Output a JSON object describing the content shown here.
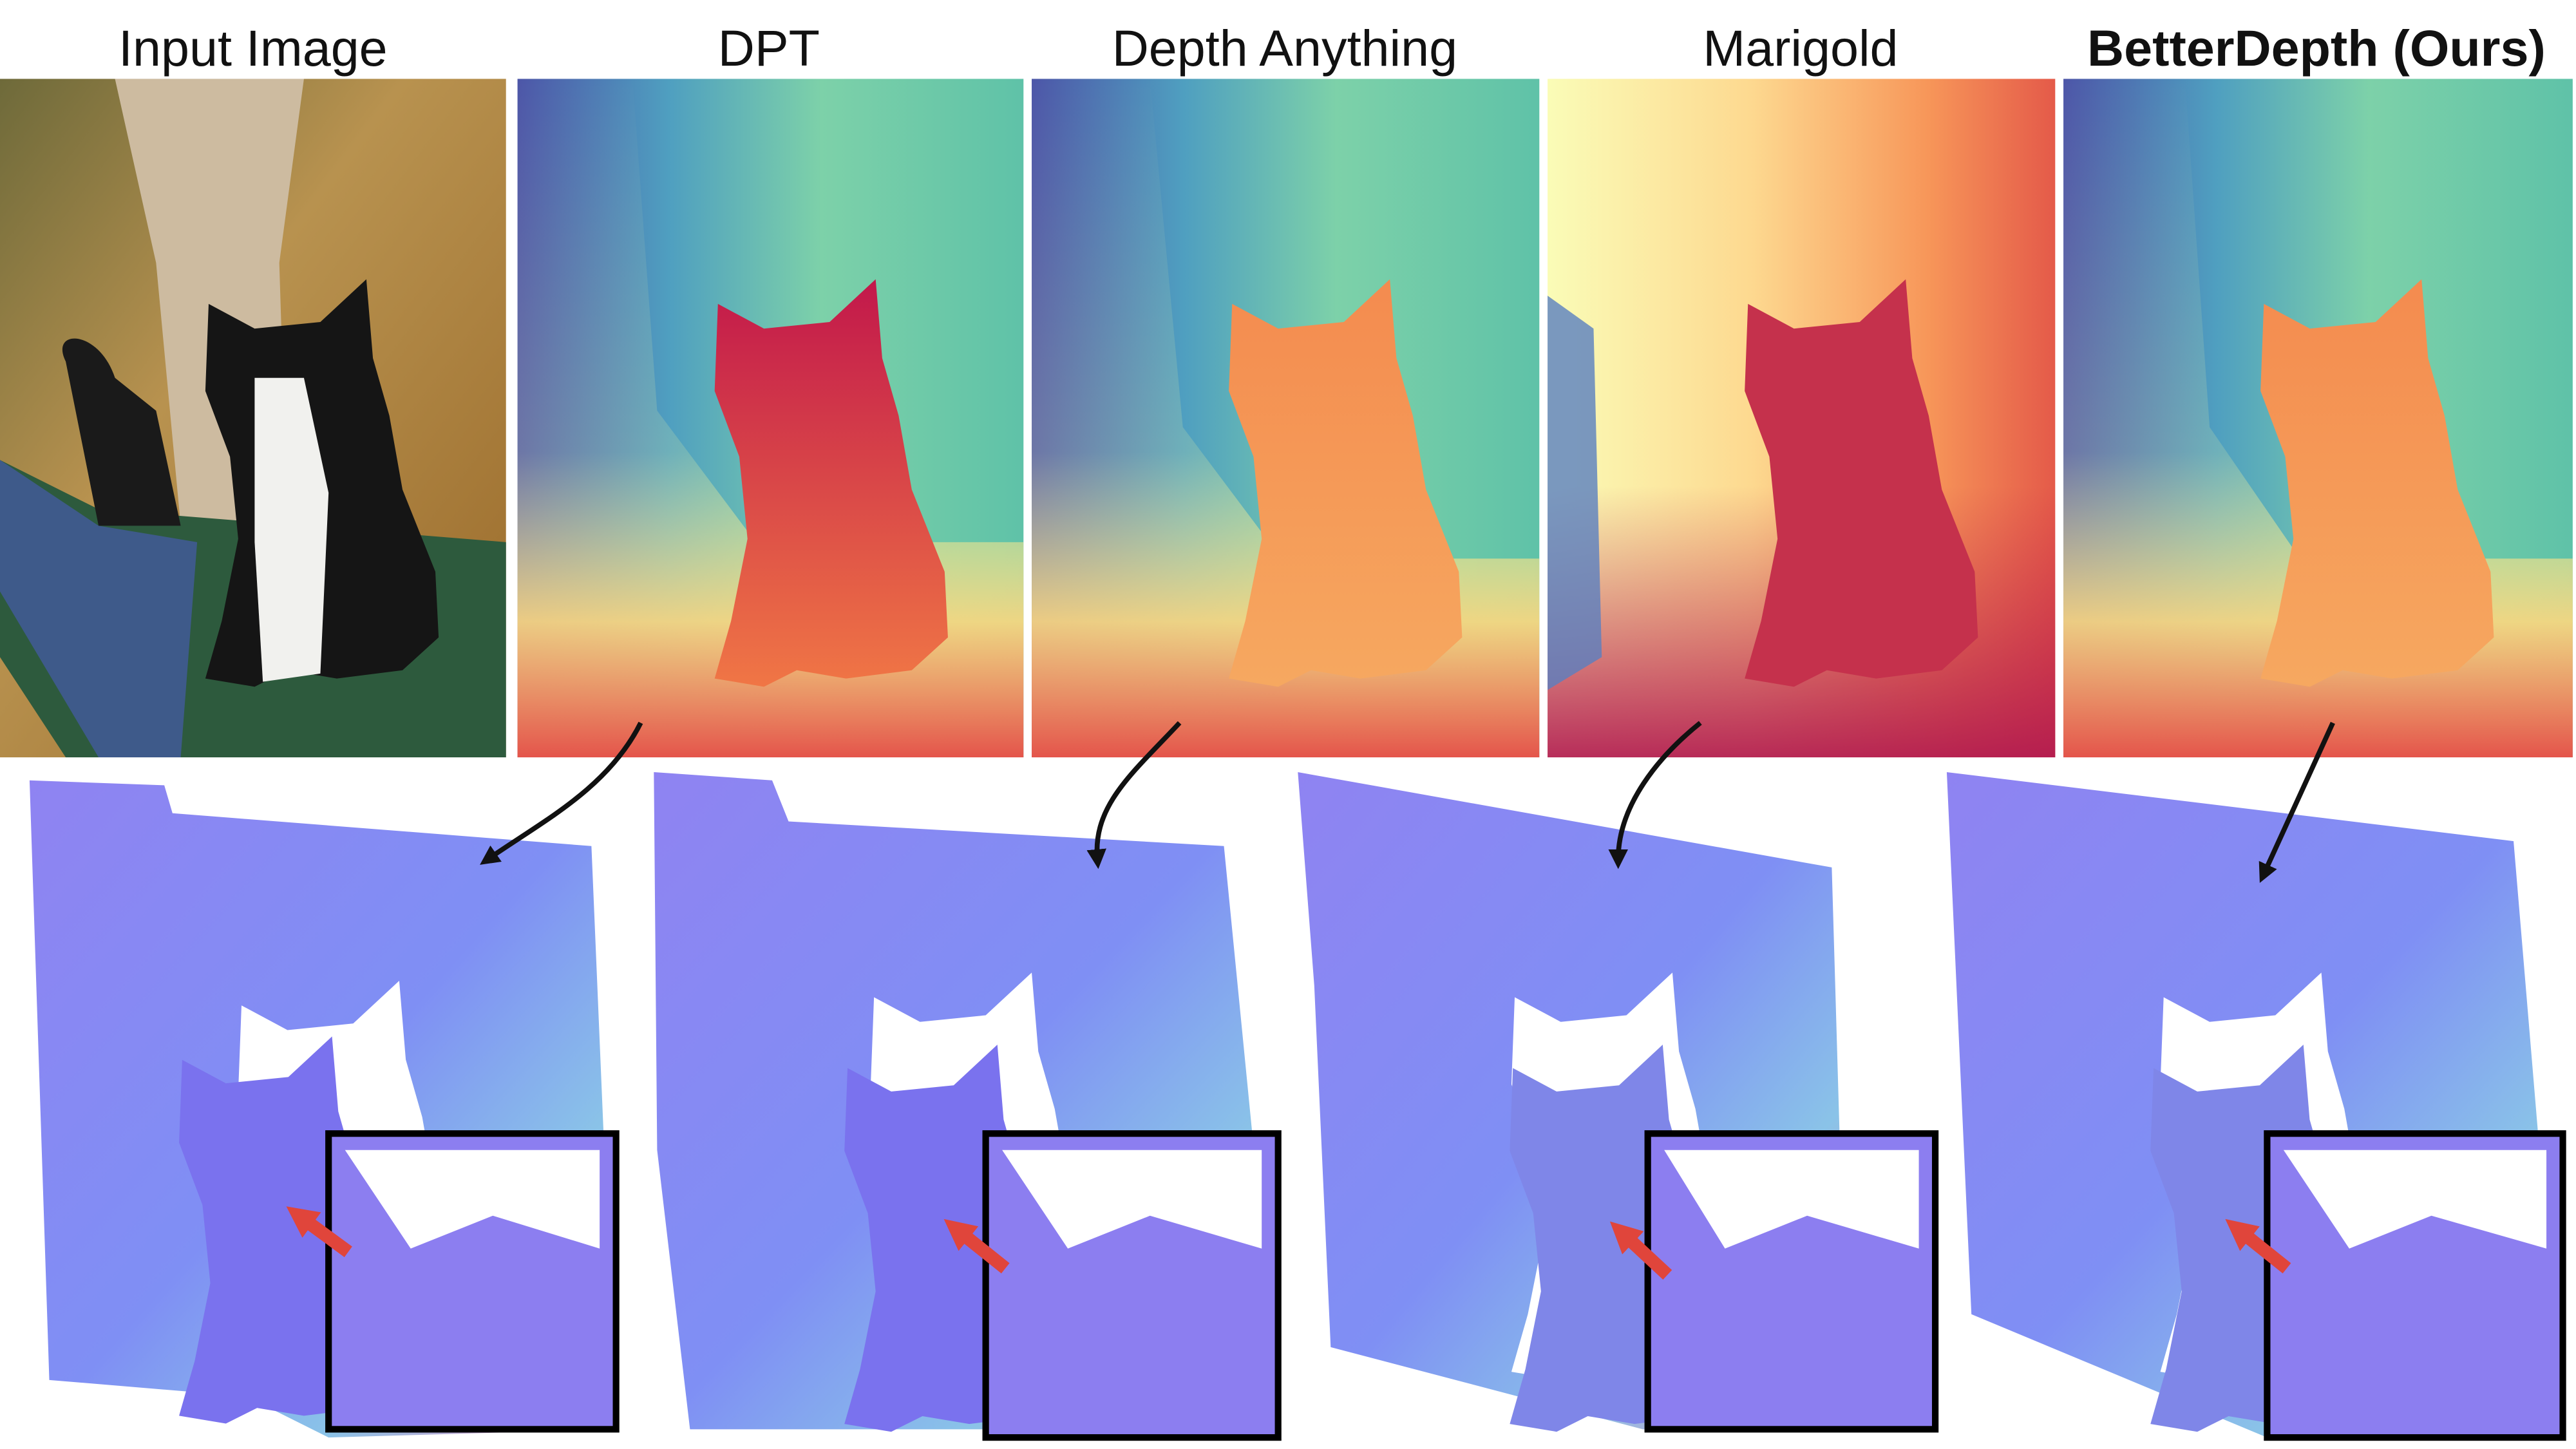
{
  "header": {
    "titles": [
      "Input Image",
      "DPT",
      "Depth Anything",
      "Marigold",
      "BetterDepth (Ours)"
    ]
  }
}
